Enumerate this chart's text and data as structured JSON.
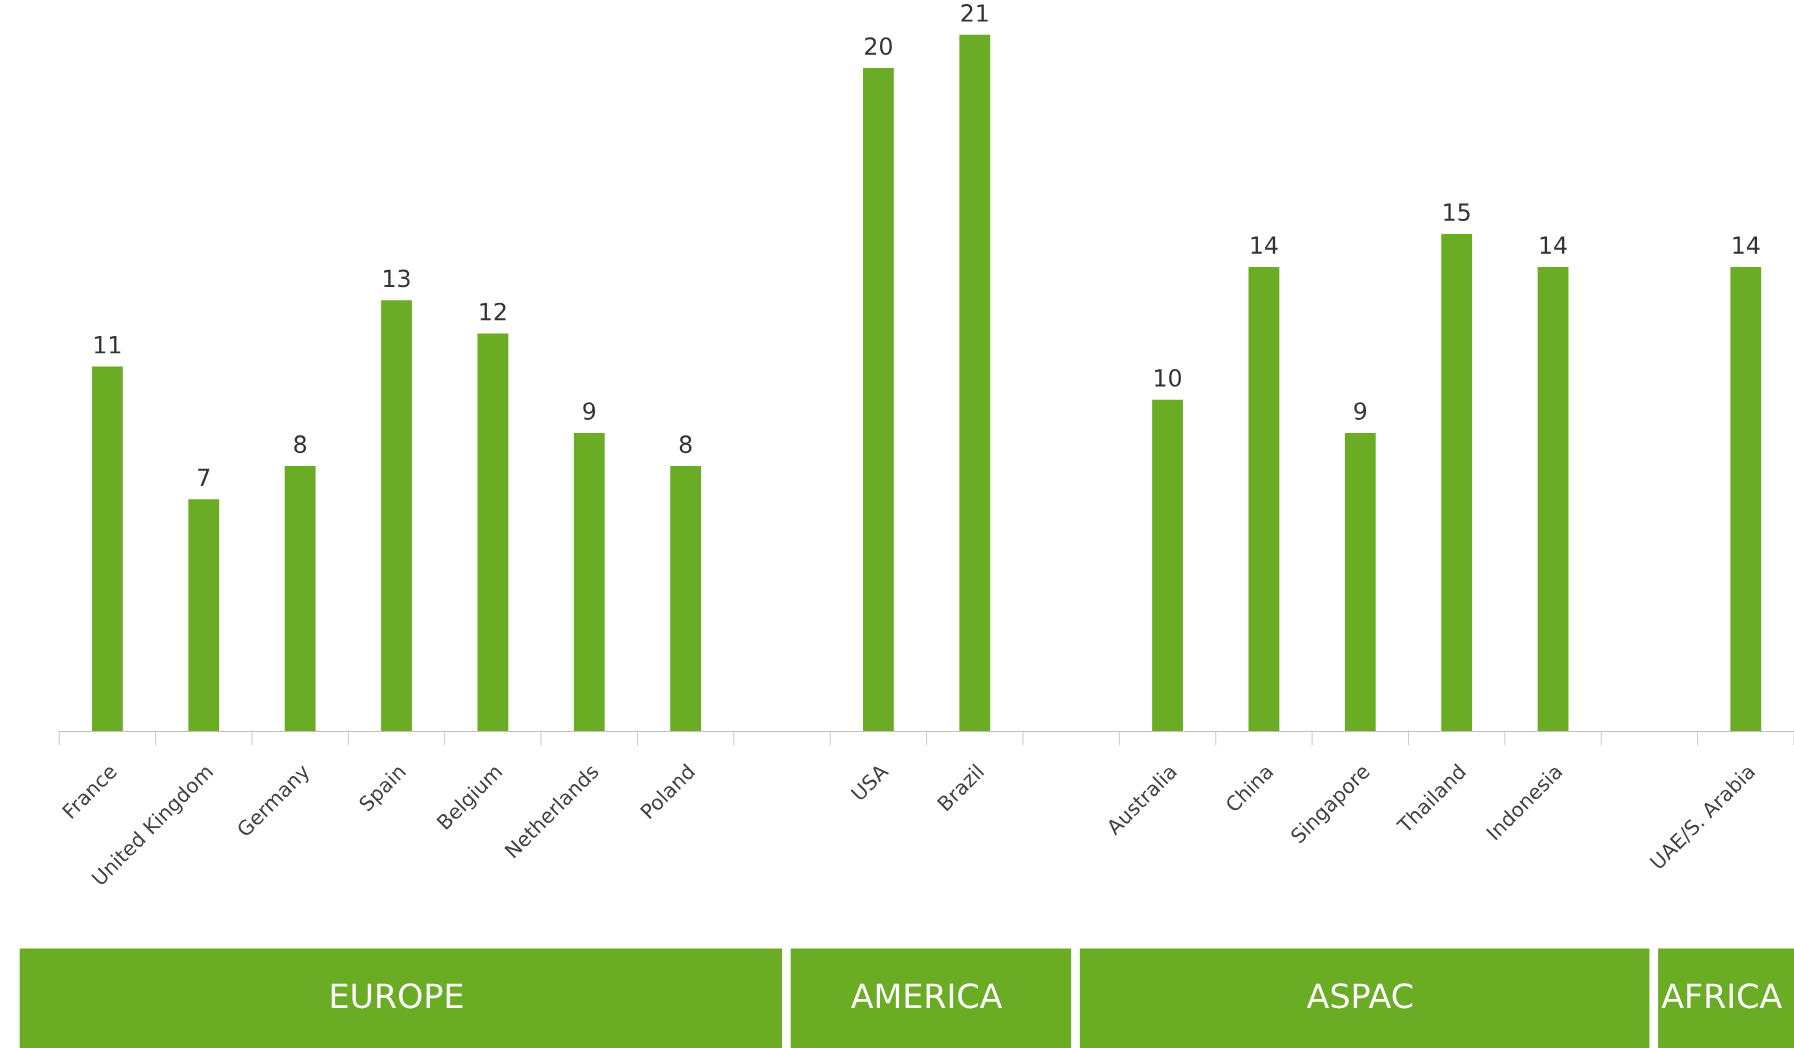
{
  "chart_data": {
    "type": "bar",
    "categories": [
      "France",
      "United Kingdom",
      "Germany",
      "Spain",
      "Belgium",
      "Netherlands",
      "Poland",
      null,
      "USA",
      "Brazil",
      null,
      "Australia",
      "China",
      "Singapore",
      "Thailand",
      "Indonesia",
      null,
      "UAE/S. Arabia"
    ],
    "values": [
      11,
      7,
      8,
      13,
      12,
      9,
      8,
      null,
      20,
      21,
      null,
      10,
      14,
      9,
      15,
      14,
      null,
      14
    ],
    "color": "#6aad24",
    "data_labels": true,
    "tick_labels": "x",
    "grid": false,
    "legend": false,
    "annotations": [
      "EUROPE",
      "AMERICA",
      "ASPAC",
      "AFRICA"
    ]
  }
}
